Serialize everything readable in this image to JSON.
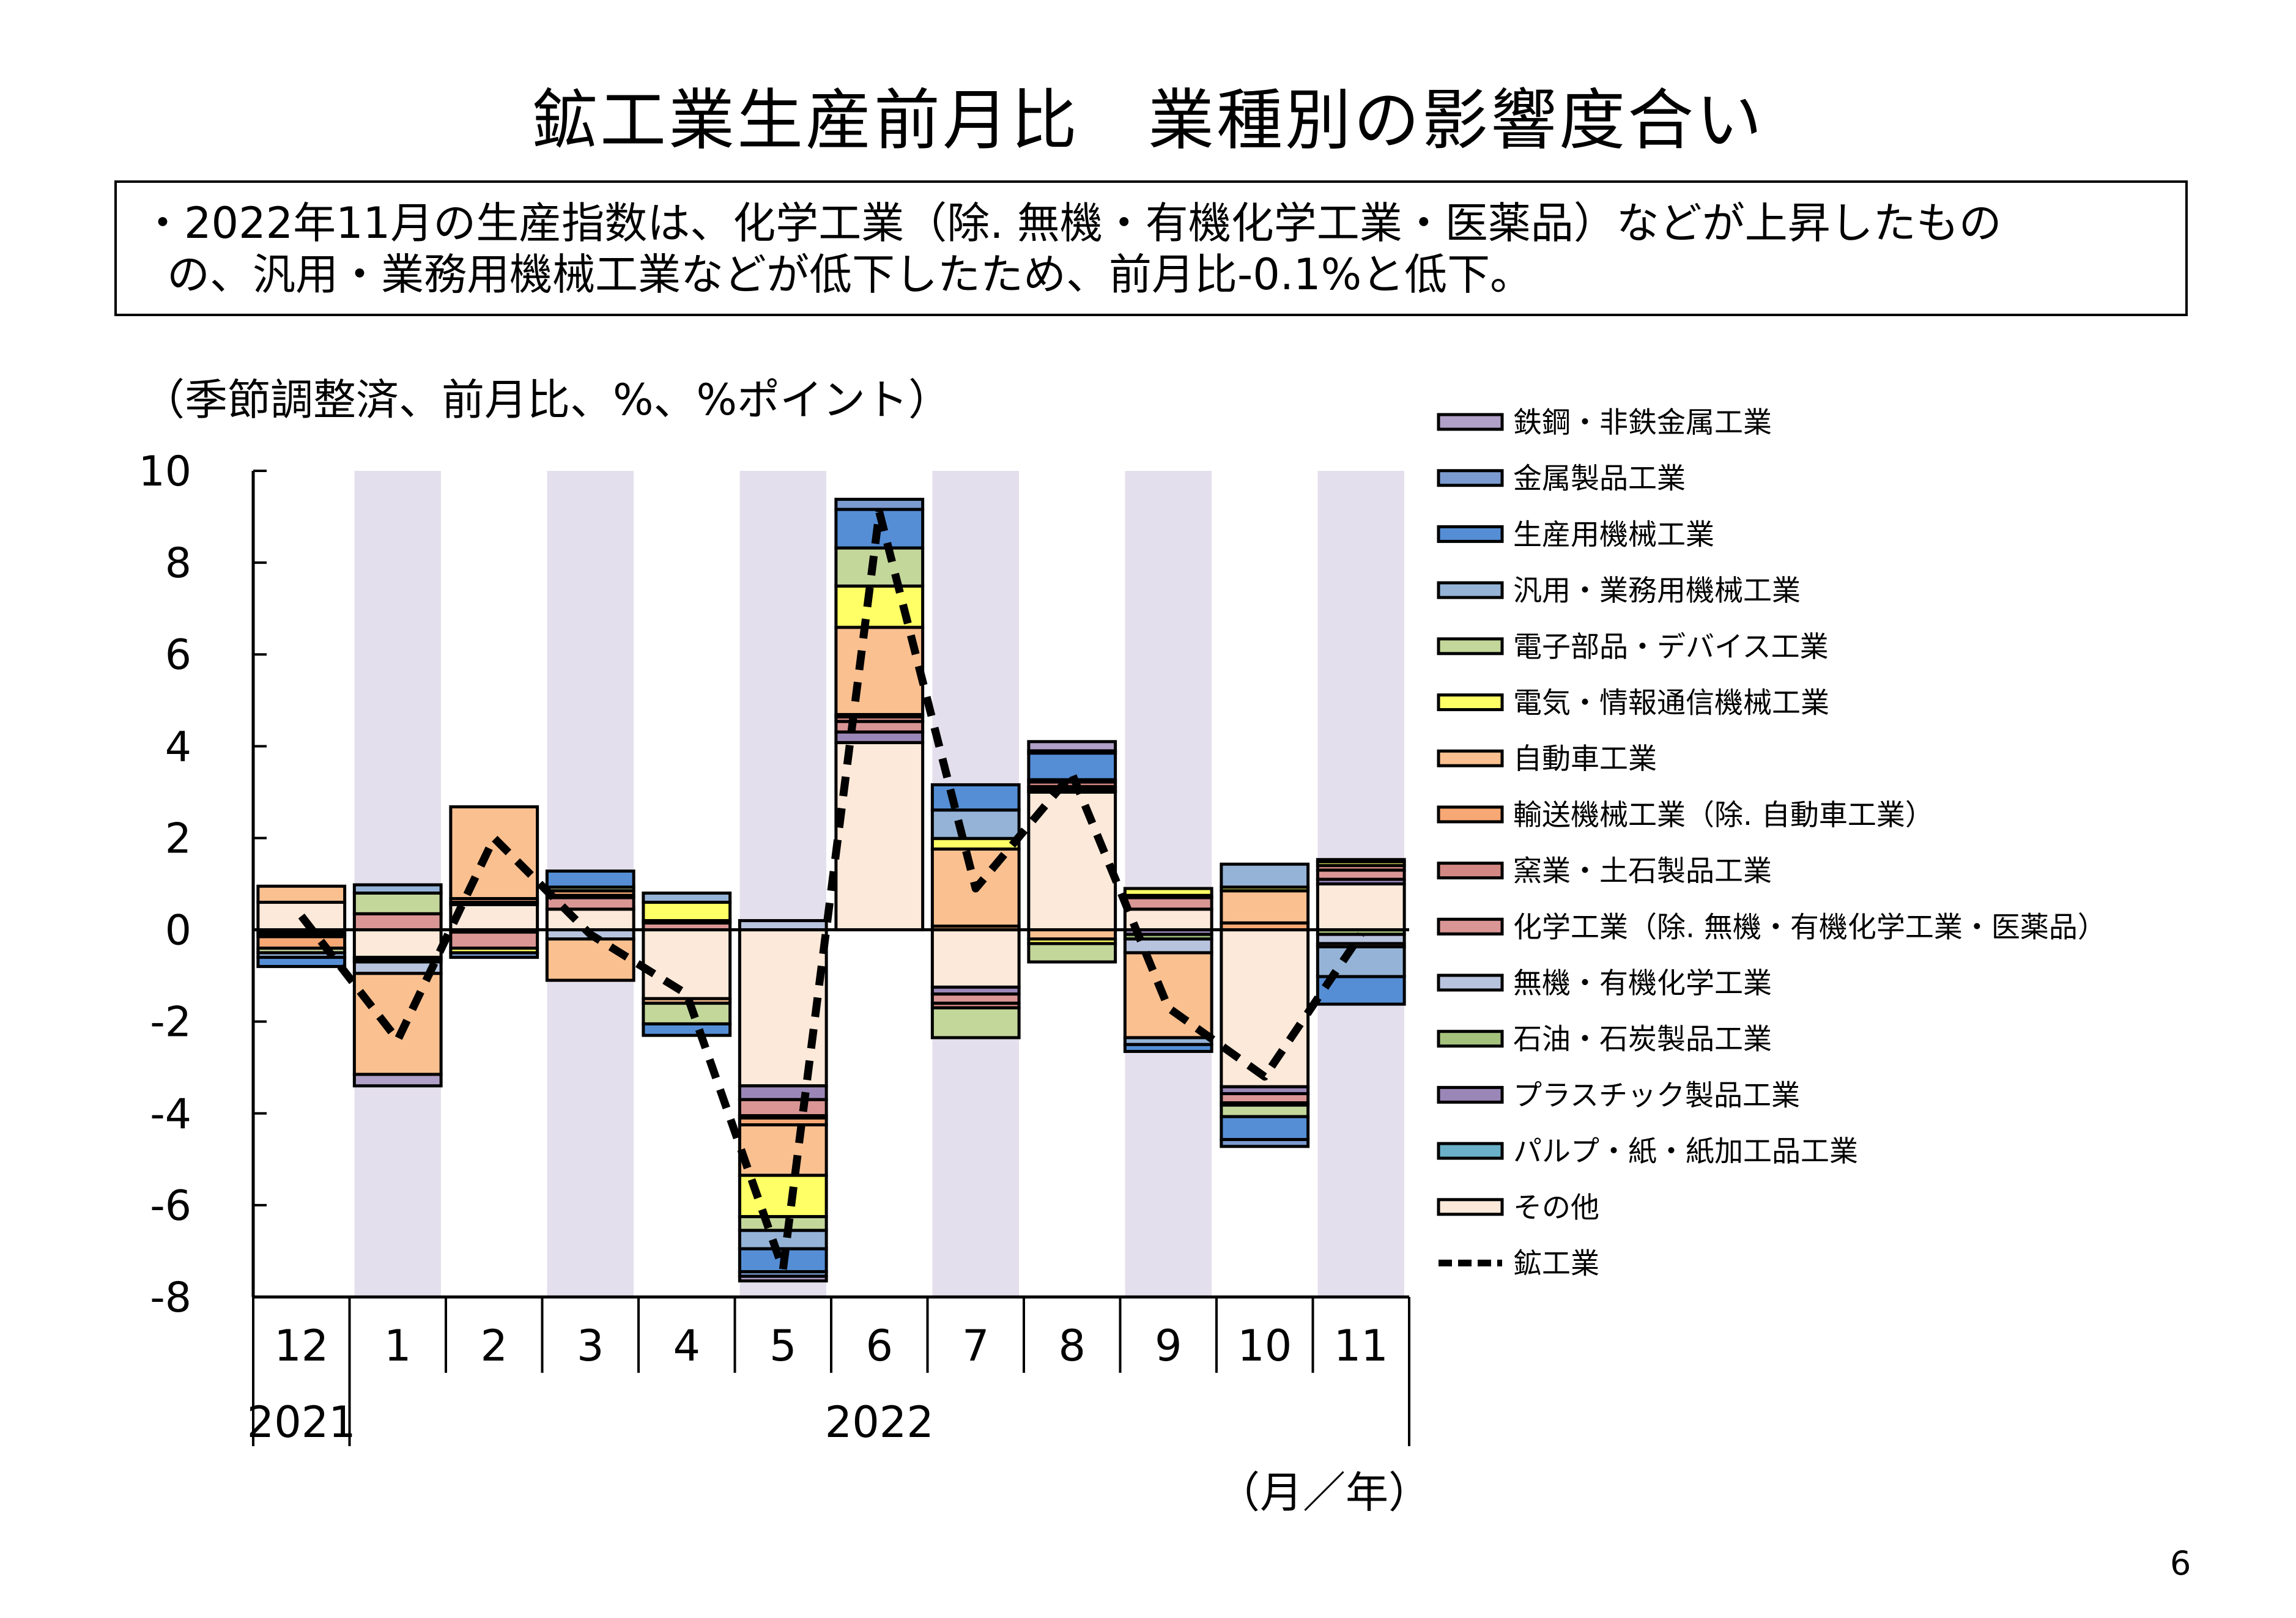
{
  "page": {
    "title": "鉱工業生産前月比　業種別の影響度合い",
    "summary_line1": "・2022年11月の生産指数は、化学工業（除. 無機・有機化学工業・医薬品）などが上昇したもの",
    "summary_line2": "の、汎用・業務用機械工業などが低下したため、前月比-0.1%と低下。",
    "page_number": "6"
  },
  "chart_data": {
    "type": "bar",
    "stacked": true,
    "title": "",
    "ylabel": "（季節調整済、前月比、%、%ポイント）",
    "xlabel": "（月／年）",
    "ylim": [
      -8,
      10
    ],
    "yticks": [
      -8,
      -6,
      -4,
      -2,
      0,
      2,
      4,
      6,
      8,
      10
    ],
    "categories": [
      "12",
      "1",
      "2",
      "3",
      "4",
      "5",
      "6",
      "7",
      "8",
      "9",
      "10",
      "11"
    ],
    "year_labels": [
      {
        "label": "2021",
        "from": 0,
        "to": 0
      },
      {
        "label": "2022",
        "from": 1,
        "to": 11
      }
    ],
    "shaded_categories": [
      1,
      3,
      5,
      7,
      9,
      11
    ],
    "shade_color": "#e4dfec",
    "legend_position": "right",
    "series": [
      {
        "name": "鉄鋼・非鉄金属工業",
        "color": "#b1a0c7",
        "values": [
          0,
          -0.25,
          0,
          0,
          0,
          -0.1,
          0,
          0,
          0.2,
          0,
          0,
          0
        ]
      },
      {
        "name": "金属製品工業",
        "color": "#7b9bd0",
        "values": [
          0,
          0,
          -0.1,
          0,
          0,
          -0.1,
          0.22,
          0,
          0.05,
          0,
          -0.15,
          0.05
        ]
      },
      {
        "name": "生産用機械工業",
        "color": "#558ed5",
        "values": [
          -0.2,
          0,
          0,
          0.35,
          -0.25,
          -0.5,
          0.84,
          0.55,
          0.58,
          -0.15,
          -0.5,
          -0.6
        ]
      },
      {
        "name": "汎用・業務用機械工業",
        "color": "#95b3d7",
        "values": [
          -0.1,
          0.18,
          0,
          0,
          0.2,
          -0.4,
          0,
          0.62,
          0,
          -0.15,
          0.5,
          -0.65
        ]
      },
      {
        "name": "電子部品・デバイス工業",
        "color": "#c4d79b",
        "values": [
          -0.1,
          0.45,
          0,
          0.08,
          -0.45,
          -0.3,
          0.83,
          -0.65,
          -0.4,
          0,
          -0.25,
          0
        ]
      },
      {
        "name": "電気・情報通信機械工業",
        "color": "#ffff66",
        "values": [
          0,
          0,
          -0.1,
          0,
          0.4,
          -0.9,
          0.9,
          0.23,
          -0.1,
          0.15,
          0.08,
          0.08
        ]
      },
      {
        "name": "自動車工業",
        "color": "#fac090",
        "values": [
          0.35,
          -2.2,
          2.0,
          -0.9,
          -0.1,
          -1.1,
          1.9,
          1.68,
          -0.2,
          -1.85,
          0.7,
          -0.07
        ]
      },
      {
        "name": "輸送機械工業（除. 自動車工業）",
        "color": "#f7a874",
        "values": [
          -0.25,
          0,
          0.08,
          0.1,
          0,
          -0.15,
          0.05,
          0.08,
          0.05,
          0,
          0.15,
          0
        ]
      },
      {
        "name": "窯業・土石製品工業",
        "color": "#d48883",
        "values": [
          -0.05,
          0,
          0,
          0.05,
          0.05,
          -0.05,
          0.1,
          -0.1,
          0.1,
          0.05,
          -0.05,
          0.1
        ]
      },
      {
        "name": "化学工業（除. 無機・有機化学工業・医薬品）",
        "color": "#da9694",
        "values": [
          -0.05,
          0.35,
          -0.35,
          0.25,
          0.15,
          -0.35,
          0.23,
          -0.2,
          0.05,
          0.25,
          -0.2,
          0.2
        ]
      },
      {
        "name": "無機・有機化学工業",
        "color": "#b8c4de",
        "values": [
          0,
          -0.25,
          0.05,
          -0.2,
          0,
          0.2,
          0,
          0,
          0,
          -0.3,
          0,
          -0.2
        ]
      },
      {
        "name": "石油・石炭製品工業",
        "color": "#a5c27d",
        "values": [
          0,
          -0.05,
          -0.05,
          0,
          0,
          0,
          0,
          0,
          0,
          -0.1,
          0,
          -0.1
        ]
      },
      {
        "name": "プラスチック製品工業",
        "color": "#9b87b7",
        "values": [
          0,
          -0.05,
          0,
          0,
          0,
          -0.3,
          0.23,
          -0.15,
          0.05,
          -0.1,
          -0.15,
          0.1
        ]
      },
      {
        "name": "パルプ・紙・紙加工品工業",
        "color": "#6ab0c8",
        "values": [
          -0.05,
          0,
          0,
          0,
          0,
          0,
          0,
          0,
          0.02,
          0,
          0,
          0
        ]
      },
      {
        "name": "その他",
        "color": "#fde9d9",
        "values": [
          0.6,
          -0.6,
          0.55,
          0.45,
          -1.5,
          -3.4,
          4.08,
          -1.25,
          3.0,
          0.45,
          -3.42,
          1.0
        ]
      }
    ],
    "line_series": {
      "name": "鉱工業",
      "color": "#000000",
      "style": "dashed",
      "values": [
        0.3,
        -2.4,
        2.0,
        -0.1,
        -1.4,
        -7.4,
        9.1,
        0.9,
        3.4,
        -1.7,
        -3.2,
        -0.1
      ]
    }
  }
}
